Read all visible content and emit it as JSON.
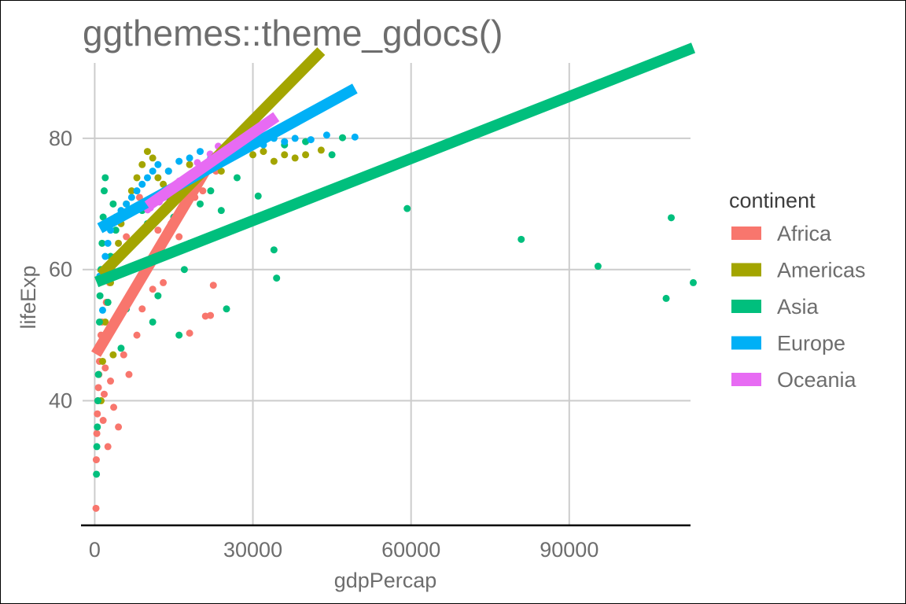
{
  "chart_data": {
    "type": "scatter",
    "title": "ggthemes::theme_gdocs()",
    "xlabel": "gdpPercap",
    "ylabel": "lifeExp",
    "xlim": [
      -2300,
      113000
    ],
    "ylim": [
      21,
      91.5
    ],
    "xticks": [
      0,
      30000,
      60000,
      90000
    ],
    "xtick_labels": [
      "0",
      "30000",
      "60000",
      "90000"
    ],
    "yticks": [
      40,
      60,
      80
    ],
    "ytick_labels": [
      "40",
      "60",
      "80"
    ],
    "grid": true,
    "legend": {
      "title": "continent",
      "placement": "right",
      "entries": [
        "Africa",
        "Americas",
        "Asia",
        "Europe",
        "Oceania"
      ]
    },
    "series": [
      {
        "name": "Africa",
        "color": "#F8766D",
        "trend_line": {
          "x": [
            241,
            21951
          ],
          "y": [
            47.1,
            76.4
          ]
        },
        "points": [
          {
            "x": 241,
            "y": 23.6
          },
          {
            "x": 300,
            "y": 31
          },
          {
            "x": 400,
            "y": 35
          },
          {
            "x": 500,
            "y": 38
          },
          {
            "x": 600,
            "y": 40
          },
          {
            "x": 700,
            "y": 42
          },
          {
            "x": 800,
            "y": 44
          },
          {
            "x": 900,
            "y": 46
          },
          {
            "x": 1000,
            "y": 48
          },
          {
            "x": 1200,
            "y": 50
          },
          {
            "x": 1400,
            "y": 52
          },
          {
            "x": 1600,
            "y": 37
          },
          {
            "x": 1800,
            "y": 41
          },
          {
            "x": 2000,
            "y": 45
          },
          {
            "x": 2200,
            "y": 55
          },
          {
            "x": 2500,
            "y": 33
          },
          {
            "x": 2800,
            "y": 58
          },
          {
            "x": 3000,
            "y": 43
          },
          {
            "x": 3300,
            "y": 60
          },
          {
            "x": 3600,
            "y": 39
          },
          {
            "x": 4000,
            "y": 52
          },
          {
            "x": 4500,
            "y": 36
          },
          {
            "x": 5000,
            "y": 62
          },
          {
            "x": 5500,
            "y": 47
          },
          {
            "x": 6000,
            "y": 65
          },
          {
            "x": 6500,
            "y": 44
          },
          {
            "x": 7000,
            "y": 56
          },
          {
            "x": 8000,
            "y": 50
          },
          {
            "x": 8500,
            "y": 71
          },
          {
            "x": 9000,
            "y": 54
          },
          {
            "x": 10000,
            "y": 61
          },
          {
            "x": 11000,
            "y": 57
          },
          {
            "x": 12000,
            "y": 66
          },
          {
            "x": 13000,
            "y": 58
          },
          {
            "x": 14500,
            "y": 67
          },
          {
            "x": 16000,
            "y": 65
          },
          {
            "x": 18000,
            "y": 50.3
          },
          {
            "x": 19000,
            "y": 71
          },
          {
            "x": 20500,
            "y": 72
          },
          {
            "x": 21000,
            "y": 52.9
          },
          {
            "x": 21951,
            "y": 53
          },
          {
            "x": 22500,
            "y": 57.6
          },
          {
            "x": 23000,
            "y": 75
          }
        ]
      },
      {
        "name": "Americas",
        "color": "#A3A500",
        "trend_line": {
          "x": [
            1202,
            42952
          ],
          "y": [
            59.2,
            93.3
          ]
        },
        "points": [
          {
            "x": 1202,
            "y": 40
          },
          {
            "x": 1500,
            "y": 46
          },
          {
            "x": 2000,
            "y": 52
          },
          {
            "x": 2500,
            "y": 55
          },
          {
            "x": 3000,
            "y": 58
          },
          {
            "x": 3500,
            "y": 47
          },
          {
            "x": 4000,
            "y": 62
          },
          {
            "x": 4500,
            "y": 64
          },
          {
            "x": 5000,
            "y": 67
          },
          {
            "x": 6000,
            "y": 70
          },
          {
            "x": 7000,
            "y": 72
          },
          {
            "x": 8000,
            "y": 74
          },
          {
            "x": 9000,
            "y": 76
          },
          {
            "x": 10000,
            "y": 78
          },
          {
            "x": 11000,
            "y": 77
          },
          {
            "x": 12000,
            "y": 74
          },
          {
            "x": 13000,
            "y": 73
          },
          {
            "x": 14000,
            "y": 75
          },
          {
            "x": 16000,
            "y": 72
          },
          {
            "x": 18000,
            "y": 76
          },
          {
            "x": 20000,
            "y": 74
          },
          {
            "x": 22000,
            "y": 77
          },
          {
            "x": 24000,
            "y": 75
          },
          {
            "x": 26000,
            "y": 77
          },
          {
            "x": 28000,
            "y": 78
          },
          {
            "x": 30000,
            "y": 77.5
          },
          {
            "x": 32000,
            "y": 78
          },
          {
            "x": 34000,
            "y": 76.5
          },
          {
            "x": 36000,
            "y": 77.5
          },
          {
            "x": 38000,
            "y": 77
          },
          {
            "x": 40000,
            "y": 77.5
          },
          {
            "x": 42952,
            "y": 78.2
          }
        ]
      },
      {
        "name": "Asia",
        "color": "#00BF7D",
        "trend_line": {
          "x": [
            331,
            113523
          ],
          "y": [
            58.1,
            93.8
          ]
        },
        "points": [
          {
            "x": 331,
            "y": 28.8
          },
          {
            "x": 400,
            "y": 33
          },
          {
            "x": 500,
            "y": 36
          },
          {
            "x": 600,
            "y": 40
          },
          {
            "x": 700,
            "y": 44
          },
          {
            "x": 800,
            "y": 48
          },
          {
            "x": 900,
            "y": 52
          },
          {
            "x": 1000,
            "y": 56
          },
          {
            "x": 1200,
            "y": 60
          },
          {
            "x": 1400,
            "y": 64
          },
          {
            "x": 1600,
            "y": 68
          },
          {
            "x": 1800,
            "y": 72
          },
          {
            "x": 2000,
            "y": 74
          },
          {
            "x": 2500,
            "y": 55
          },
          {
            "x": 3000,
            "y": 62
          },
          {
            "x": 3500,
            "y": 70
          },
          {
            "x": 4000,
            "y": 66
          },
          {
            "x": 5000,
            "y": 48
          },
          {
            "x": 6000,
            "y": 54
          },
          {
            "x": 7000,
            "y": 60
          },
          {
            "x": 8000,
            "y": 65
          },
          {
            "x": 9000,
            "y": 69
          },
          {
            "x": 10000,
            "y": 67
          },
          {
            "x": 11000,
            "y": 52
          },
          {
            "x": 12000,
            "y": 56
          },
          {
            "x": 13000,
            "y": 62
          },
          {
            "x": 14000,
            "y": 71
          },
          {
            "x": 15000,
            "y": 68
          },
          {
            "x": 16000,
            "y": 50
          },
          {
            "x": 17000,
            "y": 60
          },
          {
            "x": 18000,
            "y": 64
          },
          {
            "x": 20000,
            "y": 70
          },
          {
            "x": 22000,
            "y": 72
          },
          {
            "x": 24000,
            "y": 69
          },
          {
            "x": 25000,
            "y": 54
          },
          {
            "x": 27000,
            "y": 74
          },
          {
            "x": 31000,
            "y": 71.2
          },
          {
            "x": 34000,
            "y": 63
          },
          {
            "x": 34500,
            "y": 58.7
          },
          {
            "x": 36000,
            "y": 79
          },
          {
            "x": 40000,
            "y": 79.5
          },
          {
            "x": 45000,
            "y": 77.5
          },
          {
            "x": 47000,
            "y": 80.1
          },
          {
            "x": 59265,
            "y": 69.3
          },
          {
            "x": 80894,
            "y": 64.6
          },
          {
            "x": 95458,
            "y": 60.5
          },
          {
            "x": 108382,
            "y": 55.6
          },
          {
            "x": 109348,
            "y": 67.9
          },
          {
            "x": 113523,
            "y": 58
          }
        ]
      },
      {
        "name": "Europe",
        "color": "#00B0F6",
        "trend_line": {
          "x": [
            974,
            49357
          ],
          "y": [
            66.3,
            87.6
          ]
        },
        "points": [
          {
            "x": 974,
            "y": 59
          },
          {
            "x": 1500,
            "y": 53.8
          },
          {
            "x": 2000,
            "y": 62
          },
          {
            "x": 2500,
            "y": 64
          },
          {
            "x": 3000,
            "y": 66
          },
          {
            "x": 4000,
            "y": 68
          },
          {
            "x": 5000,
            "y": 69
          },
          {
            "x": 6000,
            "y": 70
          },
          {
            "x": 7000,
            "y": 71
          },
          {
            "x": 8000,
            "y": 72
          },
          {
            "x": 9000,
            "y": 73
          },
          {
            "x": 10000,
            "y": 74
          },
          {
            "x": 11000,
            "y": 75
          },
          {
            "x": 12000,
            "y": 76
          },
          {
            "x": 14000,
            "y": 75
          },
          {
            "x": 16000,
            "y": 76.5
          },
          {
            "x": 18000,
            "y": 77
          },
          {
            "x": 20000,
            "y": 78
          },
          {
            "x": 22000,
            "y": 77
          },
          {
            "x": 24000,
            "y": 78.5
          },
          {
            "x": 26000,
            "y": 79
          },
          {
            "x": 28000,
            "y": 78
          },
          {
            "x": 30000,
            "y": 79.5
          },
          {
            "x": 32000,
            "y": 79
          },
          {
            "x": 34000,
            "y": 80
          },
          {
            "x": 36000,
            "y": 79.5
          },
          {
            "x": 38000,
            "y": 80
          },
          {
            "x": 41000,
            "y": 79.8
          },
          {
            "x": 44000,
            "y": 80.5
          },
          {
            "x": 49357,
            "y": 80.2
          }
        ]
      },
      {
        "name": "Oceania",
        "color": "#E76BF3",
        "trend_line": {
          "x": [
            10040,
            34435
          ],
          "y": [
            69.7,
            83.3
          ]
        },
        "points": [
          {
            "x": 10040,
            "y": 69.1
          },
          {
            "x": 10557,
            "y": 69.4
          },
          {
            "x": 12247,
            "y": 70.3
          },
          {
            "x": 13175,
            "y": 71
          },
          {
            "x": 14463,
            "y": 71.9
          },
          {
            "x": 16046,
            "y": 73.5
          },
          {
            "x": 18363,
            "y": 74.7
          },
          {
            "x": 19477,
            "y": 76.3
          },
          {
            "x": 21889,
            "y": 77.6
          },
          {
            "x": 23425,
            "y": 78.8
          },
          {
            "x": 26998,
            "y": 80
          },
          {
            "x": 30688,
            "y": 80.4
          },
          {
            "x": 34435,
            "y": 81.2
          }
        ]
      }
    ]
  }
}
